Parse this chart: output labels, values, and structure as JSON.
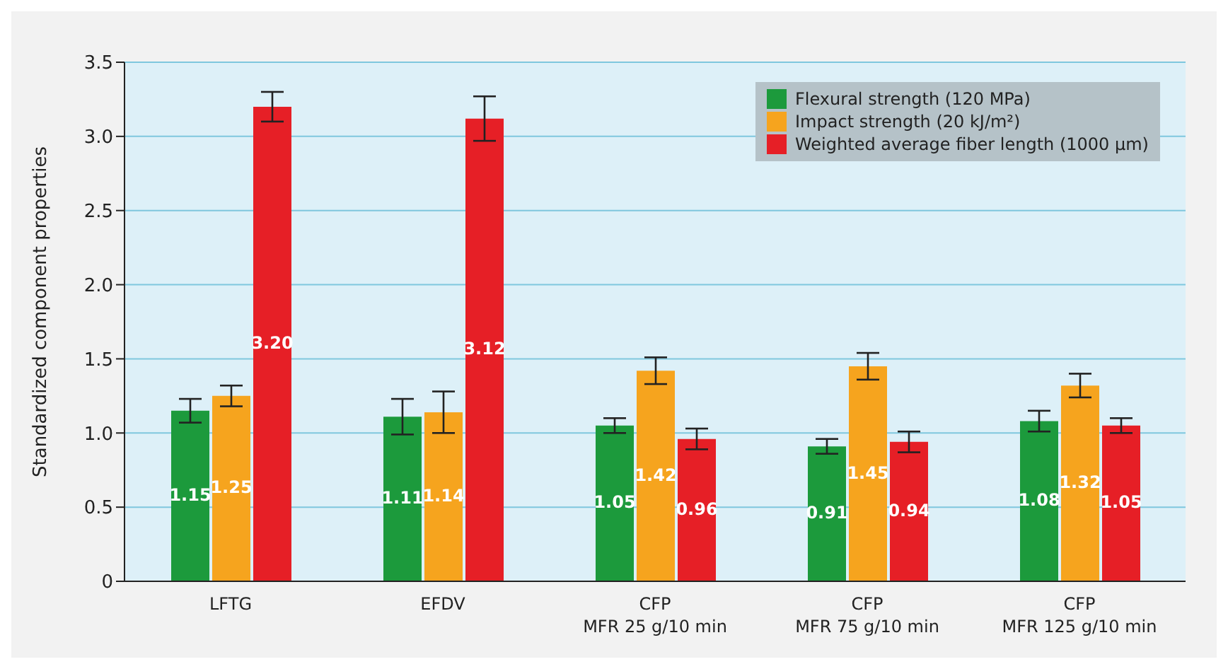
{
  "chart_data": {
    "type": "bar",
    "ylabel": "Standardized component properties",
    "categories": [
      "LFTG",
      "EFDV",
      "CFP\nMFR 25 g/10 min",
      "CFP\nMFR 75 g/10 min",
      "CFP\nMFR 125 g/10 min"
    ],
    "series": [
      {
        "name": "Flexural strength (120 MPa)",
        "color": "#1c9a3c",
        "values": [
          1.15,
          1.11,
          1.05,
          0.91,
          1.08
        ],
        "errors": [
          0.08,
          0.12,
          0.05,
          0.05,
          0.07
        ],
        "value_labels": [
          "1.15",
          "1.11",
          "1.05",
          "0.91",
          "1.08"
        ]
      },
      {
        "name": "Impact strength (20 kJ/m²)",
        "color": "#f6a41e",
        "values": [
          1.25,
          1.14,
          1.42,
          1.45,
          1.32
        ],
        "errors": [
          0.07,
          0.14,
          0.09,
          0.09,
          0.08
        ],
        "value_labels": [
          "1.25",
          "1.14",
          "1.42",
          "1.45",
          "1.32"
        ]
      },
      {
        "name": "Weighted average fiber length (1000 µm)",
        "color": "#e61f26",
        "values": [
          3.2,
          3.12,
          0.96,
          0.94,
          1.05
        ],
        "errors": [
          0.1,
          0.15,
          0.07,
          0.07,
          0.05
        ],
        "value_labels": [
          "3.20",
          "3.12",
          "0.96",
          "0.94",
          "1.05"
        ]
      }
    ],
    "ylim": [
      0,
      3.5
    ],
    "yticks": [
      {
        "value": 0,
        "label": "0"
      },
      0.5,
      {
        "value": 1,
        "label": "1.0"
      },
      1.5,
      {
        "value": 2,
        "label": "2.0"
      },
      2.5,
      {
        "value": 3,
        "label": "3.0"
      },
      3.5
    ],
    "grid": "y",
    "legend": "top right"
  }
}
